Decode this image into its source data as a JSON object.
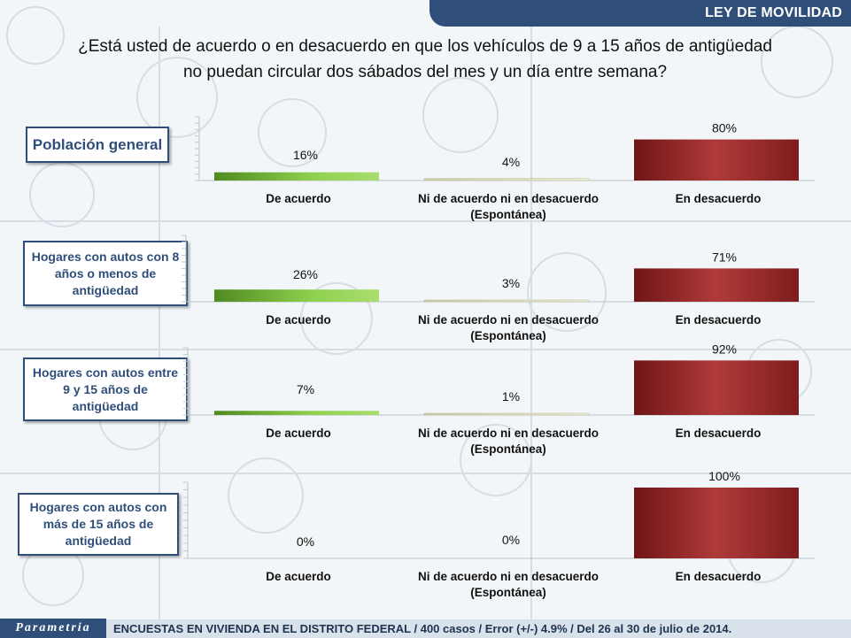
{
  "header": {
    "title": "LEY DE MOVILIDAD"
  },
  "question": {
    "line1": "¿Está usted de acuerdo o en desacuerdo en que los vehículos de 9 a 15 años de antigüedad",
    "line2": "no puedan circular dos sábados del mes y un día entre semana?"
  },
  "watermark": "Parametria",
  "footer": {
    "brand": "Parametria",
    "text": "ENCUESTAS EN VIVIENDA EN EL DISTRITO FEDERAL / 400 casos / Error (+/-) 4.9% / Del 26 al 30 de julio de 2014."
  },
  "colors": {
    "accent": "#2f4f7a",
    "agree": "#7dc242",
    "neutral": "#e4e6c8",
    "disagree": "#a32d2d"
  },
  "chart_data": [
    {
      "type": "bar",
      "segment": [
        "Población general"
      ],
      "categories": [
        "De acuerdo",
        "Ni de acuerdo ni en desacuerdo (Espontánea)",
        "En desacuerdo"
      ],
      "category_lines": [
        [
          "De acuerdo"
        ],
        [
          "Ni de acuerdo ni en desacuerdo",
          "(Espontánea)"
        ],
        [
          "En desacuerdo"
        ]
      ],
      "values": [
        16,
        4,
        80
      ],
      "labels": [
        "16%",
        "4%",
        "80%"
      ],
      "ylim": [
        0,
        100
      ]
    },
    {
      "type": "bar",
      "segment": [
        "Hogares con autos con 8",
        "años o menos de",
        "antigüedad"
      ],
      "categories": [
        "De acuerdo",
        "Ni de acuerdo ni en desacuerdo (Espontánea)",
        "En desacuerdo"
      ],
      "category_lines": [
        [
          "De acuerdo"
        ],
        [
          "Ni de acuerdo ni en desacuerdo",
          "(Espontánea)"
        ],
        [
          "En desacuerdo"
        ]
      ],
      "values": [
        26,
        3,
        71
      ],
      "labels": [
        "26%",
        "3%",
        "71%"
      ],
      "ylim": [
        0,
        100
      ]
    },
    {
      "type": "bar",
      "segment": [
        "Hogares con autos entre",
        "9 y 15 años de",
        "antigüedad"
      ],
      "categories": [
        "De acuerdo",
        "Ni de acuerdo ni en desacuerdo (Espontánea)",
        "En desacuerdo"
      ],
      "category_lines": [
        [
          "De acuerdo"
        ],
        [
          "Ni de acuerdo ni en desacuerdo",
          "(Espontánea)"
        ],
        [
          "En desacuerdo"
        ]
      ],
      "values": [
        7,
        1,
        92
      ],
      "labels": [
        "7%",
        "1%",
        "92%"
      ],
      "ylim": [
        0,
        100
      ]
    },
    {
      "type": "bar",
      "segment": [
        "Hogares con autos con",
        "más de 15 años de",
        "antigüedad"
      ],
      "categories": [
        "De acuerdo",
        "Ni de acuerdo ni en desacuerdo (Espontánea)",
        "En desacuerdo"
      ],
      "category_lines": [
        [
          "De acuerdo"
        ],
        [
          "Ni de acuerdo ni en desacuerdo",
          "(Espontánea)"
        ],
        [
          "En desacuerdo"
        ]
      ],
      "values": [
        0,
        0,
        100
      ],
      "labels": [
        "0%",
        "0%",
        "100%"
      ],
      "ylim": [
        0,
        100
      ]
    }
  ]
}
